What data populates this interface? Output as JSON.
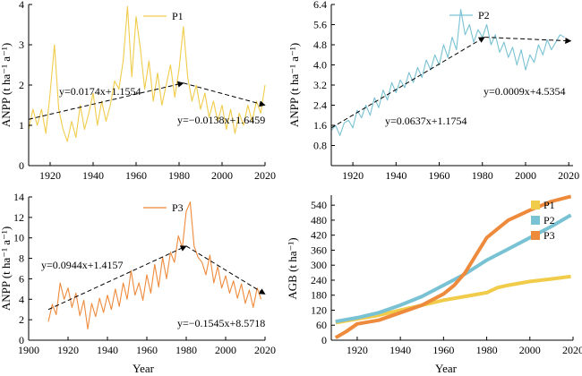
{
  "colors": {
    "P1": "#f0cc4a",
    "P2": "#79c2d3",
    "P3": "#ee8a3c",
    "axis": "#000000",
    "trend": "#000000"
  },
  "chart_data": [
    {
      "type": "line",
      "panel": "top-left",
      "xlabel": "",
      "ylabel": "ANPP (t ha⁻¹ a⁻¹)",
      "xlim": [
        1910,
        2020
      ],
      "ylim": [
        0,
        4
      ],
      "xticks": [
        "1920",
        "1940",
        "1960",
        "1980",
        "2000",
        "2020"
      ],
      "yticks": [
        "0",
        "1",
        "2",
        "3",
        "4"
      ],
      "legend": "top-center",
      "series": [
        {
          "name": "P1",
          "x": [
            1910,
            1912,
            1914,
            1916,
            1918,
            1920,
            1922,
            1924,
            1926,
            1928,
            1930,
            1932,
            1934,
            1936,
            1938,
            1940,
            1942,
            1944,
            1946,
            1948,
            1950,
            1952,
            1954,
            1956,
            1958,
            1960,
            1962,
            1964,
            1966,
            1968,
            1970,
            1972,
            1974,
            1976,
            1978,
            1980,
            1982,
            1984,
            1986,
            1988,
            1990,
            1992,
            1994,
            1996,
            1998,
            2000,
            2002,
            2004,
            2006,
            2008,
            2010,
            2012,
            2014,
            2016,
            2018,
            2020
          ],
          "y": [
            0.9,
            1.4,
            1.0,
            1.4,
            0.8,
            1.8,
            3.0,
            1.4,
            0.9,
            0.6,
            1.1,
            0.7,
            1.5,
            0.9,
            1.3,
            1.8,
            1.0,
            1.6,
            1.1,
            1.5,
            2.1,
            1.9,
            2.6,
            3.95,
            2.2,
            3.7,
            2.9,
            1.9,
            2.6,
            1.6,
            2.3,
            1.5,
            2.0,
            2.5,
            1.7,
            2.4,
            3.45,
            2.2,
            1.6,
            2.0,
            1.4,
            1.8,
            1.2,
            1.6,
            1.1,
            1.5,
            0.9,
            1.4,
            0.8,
            1.3,
            1.0,
            1.5,
            1.1,
            1.6,
            1.3,
            2.0
          ]
        }
      ],
      "trend_lines": [
        {
          "label": "y=0.0174x+1.1554",
          "x": [
            1910,
            1982
          ],
          "y": [
            1.15,
            2.05
          ]
        },
        {
          "label": "y=−0.0138x+1.6459",
          "x": [
            1982,
            2020
          ],
          "y": [
            2.05,
            1.5
          ]
        }
      ]
    },
    {
      "type": "line",
      "panel": "top-right",
      "xlabel": "",
      "ylabel": "ANPP (t ha⁻¹ a⁻¹)",
      "xlim": [
        1910,
        2022
      ],
      "ylim": [
        0,
        6.4
      ],
      "xticks": [
        "1920",
        "1940",
        "1960",
        "1980",
        "2000",
        "2020"
      ],
      "yticks": [
        "0.8",
        "1.6",
        "2.4",
        "3.2",
        "4.0",
        "4.8",
        "5.6",
        "6.4"
      ],
      "legend": "top-center",
      "series": [
        {
          "name": "P2",
          "x": [
            1910,
            1912,
            1914,
            1916,
            1918,
            1920,
            1922,
            1924,
            1926,
            1928,
            1930,
            1932,
            1934,
            1936,
            1938,
            1940,
            1942,
            1944,
            1946,
            1948,
            1950,
            1952,
            1954,
            1956,
            1958,
            1960,
            1962,
            1964,
            1966,
            1968,
            1970,
            1972,
            1974,
            1976,
            1978,
            1980,
            1982,
            1984,
            1986,
            1988,
            1990,
            1992,
            1994,
            1996,
            1998,
            2000,
            2002,
            2004,
            2006,
            2008,
            2010,
            2012,
            2014,
            2016,
            2018
          ],
          "y": [
            1.4,
            1.6,
            1.2,
            1.7,
            1.8,
            1.5,
            2.2,
            1.9,
            2.4,
            2.0,
            2.7,
            2.3,
            3.0,
            2.6,
            3.3,
            2.9,
            3.4,
            3.1,
            3.7,
            3.3,
            3.9,
            3.5,
            4.2,
            3.8,
            4.4,
            4.0,
            4.8,
            4.3,
            5.1,
            4.6,
            6.2,
            5.2,
            5.6,
            4.9,
            5.4,
            5.1,
            5.6,
            4.8,
            5.2,
            4.5,
            4.9,
            4.3,
            4.7,
            4.0,
            4.6,
            3.8,
            4.4,
            4.1,
            4.8,
            4.4,
            5.0,
            4.6,
            4.9,
            5.2,
            5.1
          ]
        }
      ],
      "trend_lines": [
        {
          "label": "y=0.0637x+1.1754",
          "x": [
            1910,
            1981
          ],
          "y": [
            1.5,
            5.1
          ]
        },
        {
          "label": "y=0.0009x+4.5354",
          "x": [
            1981,
            2021
          ],
          "y": [
            5.1,
            4.95
          ]
        }
      ]
    },
    {
      "type": "line",
      "panel": "bottom-left",
      "xlabel": "Year",
      "ylabel": "ANPP (t ha⁻¹ a⁻¹)",
      "xlim": [
        1900,
        2020
      ],
      "ylim": [
        0,
        14
      ],
      "xticks": [
        "1900",
        "1920",
        "1940",
        "1960",
        "1980",
        "2000",
        "2020"
      ],
      "yticks": [
        "0",
        "2",
        "4",
        "6",
        "8",
        "10",
        "12",
        "14"
      ],
      "legend": "top-center",
      "series": [
        {
          "name": "P3",
          "x": [
            1910,
            1912,
            1914,
            1916,
            1918,
            1920,
            1922,
            1924,
            1926,
            1928,
            1930,
            1932,
            1934,
            1936,
            1938,
            1940,
            1942,
            1944,
            1946,
            1948,
            1950,
            1952,
            1954,
            1956,
            1958,
            1960,
            1962,
            1964,
            1966,
            1968,
            1970,
            1972,
            1974,
            1976,
            1978,
            1980,
            1982,
            1984,
            1986,
            1988,
            1990,
            1992,
            1994,
            1996,
            1998,
            2000,
            2002,
            2004,
            2006,
            2008,
            2010,
            2012,
            2014,
            2016,
            2018
          ],
          "y": [
            1.8,
            3.5,
            2.5,
            5.6,
            4.0,
            5.1,
            3.2,
            4.6,
            2.4,
            3.9,
            1.1,
            3.6,
            2.3,
            4.1,
            2.7,
            4.4,
            3.0,
            5.0,
            3.3,
            5.6,
            4.0,
            6.8,
            4.4,
            5.6,
            3.9,
            6.4,
            4.6,
            7.4,
            5.2,
            8.1,
            6.0,
            8.6,
            7.6,
            10.2,
            9.0,
            12.6,
            13.5,
            9.2,
            8.1,
            7.6,
            6.4,
            8.3,
            5.6,
            7.2,
            5.1,
            6.3,
            4.6,
            5.8,
            4.1,
            5.5,
            3.6,
            4.9,
            3.2,
            5.1,
            4.0
          ]
        }
      ],
      "trend_lines": [
        {
          "label": "y=0.0944x+1.4157",
          "x": [
            1910,
            1980
          ],
          "y": [
            3.0,
            9.2
          ]
        },
        {
          "label": "y=−0.1545x+8.5718",
          "x": [
            1980,
            2020
          ],
          "y": [
            9.2,
            4.5
          ]
        }
      ]
    },
    {
      "type": "line",
      "panel": "bottom-right",
      "xlabel": "Year",
      "ylabel": "AGB (t ha⁻¹)",
      "xlim": [
        1908,
        2020
      ],
      "ylim": [
        0,
        580
      ],
      "xticks": [
        "1920",
        "1940",
        "1960",
        "1980",
        "2000",
        "2020"
      ],
      "yticks": [
        "0",
        "60",
        "120",
        "180",
        "240",
        "300",
        "360",
        "420",
        "480",
        "540"
      ],
      "legend": "right",
      "series": [
        {
          "name": "P1",
          "x": [
            1910,
            1920,
            1930,
            1940,
            1950,
            1960,
            1970,
            1980,
            1985,
            1990,
            2000,
            2010,
            2019
          ],
          "y": [
            70,
            85,
            100,
            120,
            140,
            160,
            175,
            190,
            210,
            220,
            235,
            245,
            255
          ]
        },
        {
          "name": "P2",
          "x": [
            1910,
            1920,
            1930,
            1940,
            1950,
            1960,
            1970,
            1980,
            1990,
            2000,
            2010,
            2019
          ],
          "y": [
            75,
            90,
            110,
            140,
            175,
            220,
            265,
            320,
            365,
            410,
            455,
            500
          ]
        },
        {
          "name": "P3",
          "x": [
            1910,
            1915,
            1920,
            1930,
            1940,
            1950,
            1960,
            1965,
            1970,
            1975,
            1980,
            1985,
            1990,
            2000,
            2010,
            2019
          ],
          "y": [
            10,
            35,
            65,
            80,
            110,
            140,
            185,
            220,
            270,
            340,
            410,
            445,
            480,
            520,
            555,
            575
          ]
        }
      ]
    }
  ]
}
